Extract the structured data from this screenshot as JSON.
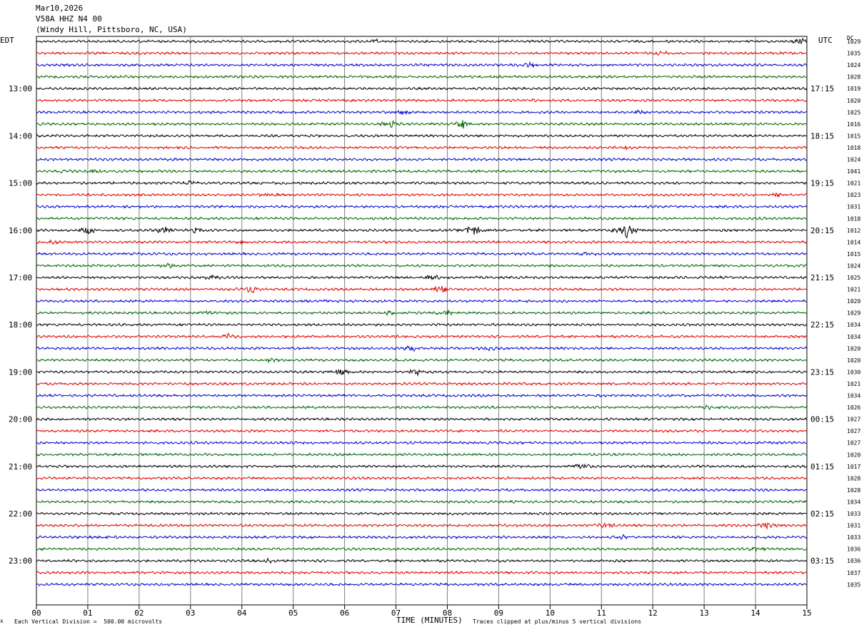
{
  "header": {
    "date": "Mar10,2026",
    "station": "V58A HHZ N4 00",
    "location": "(Windy Hill, Pittsboro, NC, USA)"
  },
  "left_tz": "EDT",
  "right_tz": "UTC",
  "right_col_label": "DC",
  "footer": {
    "scale_note": "Each Vertical Division =  500.00 microvolts",
    "xlabel": "TIME (MINUTES)",
    "clip_note": "Traces clipped at plus/minus 5 vertical divisions",
    "corner_mark": "x"
  },
  "colors": {
    "trace_cycle": [
      "#000000",
      "#e00000",
      "#0000d0",
      "#006400"
    ],
    "grid": "#808080"
  },
  "chart_data": {
    "type": "line",
    "title": "V58A HHZ N4 00",
    "xlabel": "TIME (MINUTES)",
    "xlim": [
      0,
      15
    ],
    "x_ticks": [
      "00",
      "01",
      "02",
      "03",
      "04",
      "05",
      "06",
      "07",
      "08",
      "09",
      "10",
      "11",
      "12",
      "13",
      "14",
      "15"
    ],
    "rows_per_hour": 4,
    "minutes_per_row": 15,
    "left_hour_labels": [
      "13:00",
      "14:00",
      "15:00",
      "16:00",
      "17:00",
      "18:00",
      "19:00",
      "20:00",
      "21:00",
      "22:00",
      "23:00"
    ],
    "right_hour_labels": [
      "17:15",
      "18:15",
      "19:15",
      "20:15",
      "21:15",
      "22:15",
      "23:15",
      "00:15",
      "01:15",
      "02:15",
      "03:15"
    ],
    "first_hour_row": 4,
    "dc_offsets": [
      1029,
      1035,
      1024,
      1028,
      1019,
      1020,
      1025,
      1016,
      1015,
      1018,
      1024,
      1041,
      1021,
      1023,
      1031,
      1018,
      1012,
      1014,
      1015,
      1024,
      1025,
      1021,
      1020,
      1029,
      1034,
      1034,
      1020,
      1020,
      1030,
      1021,
      1034,
      1026,
      1027,
      1027,
      1027,
      1020,
      1017,
      1028,
      1028,
      1034,
      1033,
      1031,
      1033,
      1036,
      1036,
      1037,
      1035
    ],
    "events": [
      {
        "row": 0,
        "minute": 6.6,
        "amp": 3
      },
      {
        "row": 0,
        "minute": 14.9,
        "amp": 4
      },
      {
        "row": 1,
        "minute": 12.1,
        "amp": 3
      },
      {
        "row": 2,
        "minute": 9.6,
        "amp": 3
      },
      {
        "row": 5,
        "minute": 9.7,
        "amp": 2
      },
      {
        "row": 6,
        "minute": 7.1,
        "amp": 4
      },
      {
        "row": 6,
        "minute": 11.7,
        "amp": 2
      },
      {
        "row": 7,
        "minute": 6.9,
        "amp": 6
      },
      {
        "row": 7,
        "minute": 8.3,
        "amp": 6
      },
      {
        "row": 9,
        "minute": 11.5,
        "amp": 2
      },
      {
        "row": 11,
        "minute": 0.5,
        "amp": 3
      },
      {
        "row": 11,
        "minute": 1.1,
        "amp": 3
      },
      {
        "row": 12,
        "minute": 3.0,
        "amp": 3
      },
      {
        "row": 13,
        "minute": 4.5,
        "amp": 3
      },
      {
        "row": 13,
        "minute": 14.4,
        "amp": 3
      },
      {
        "row": 16,
        "minute": 1.0,
        "amp": 5
      },
      {
        "row": 16,
        "minute": 2.5,
        "amp": 5
      },
      {
        "row": 16,
        "minute": 3.1,
        "amp": 4
      },
      {
        "row": 16,
        "minute": 8.5,
        "amp": 9
      },
      {
        "row": 16,
        "minute": 11.5,
        "amp": 10
      },
      {
        "row": 17,
        "minute": 0.3,
        "amp": 3
      },
      {
        "row": 17,
        "minute": 4.0,
        "amp": 2
      },
      {
        "row": 18,
        "minute": 10.7,
        "amp": 3
      },
      {
        "row": 19,
        "minute": 2.6,
        "amp": 3
      },
      {
        "row": 20,
        "minute": 3.4,
        "amp": 4
      },
      {
        "row": 20,
        "minute": 7.7,
        "amp": 3
      },
      {
        "row": 21,
        "minute": 4.2,
        "amp": 6
      },
      {
        "row": 21,
        "minute": 7.9,
        "amp": 6
      },
      {
        "row": 22,
        "minute": 5.5,
        "amp": 2
      },
      {
        "row": 23,
        "minute": 3.3,
        "amp": 3
      },
      {
        "row": 23,
        "minute": 6.9,
        "amp": 4
      },
      {
        "row": 23,
        "minute": 8.0,
        "amp": 4
      },
      {
        "row": 25,
        "minute": 3.7,
        "amp": 4
      },
      {
        "row": 26,
        "minute": 7.3,
        "amp": 4
      },
      {
        "row": 26,
        "minute": 8.8,
        "amp": 3
      },
      {
        "row": 27,
        "minute": 4.6,
        "amp": 3
      },
      {
        "row": 28,
        "minute": 5.9,
        "amp": 5
      },
      {
        "row": 28,
        "minute": 7.4,
        "amp": 5
      },
      {
        "row": 31,
        "minute": 13.0,
        "amp": 3
      },
      {
        "row": 36,
        "minute": 10.6,
        "amp": 5
      },
      {
        "row": 41,
        "minute": 11.1,
        "amp": 4
      },
      {
        "row": 41,
        "minute": 14.2,
        "amp": 5
      },
      {
        "row": 42,
        "minute": 1.4,
        "amp": 2
      },
      {
        "row": 42,
        "minute": 11.4,
        "amp": 3
      },
      {
        "row": 43,
        "minute": 14.0,
        "amp": 3
      },
      {
        "row": 44,
        "minute": 4.5,
        "amp": 2
      }
    ]
  }
}
